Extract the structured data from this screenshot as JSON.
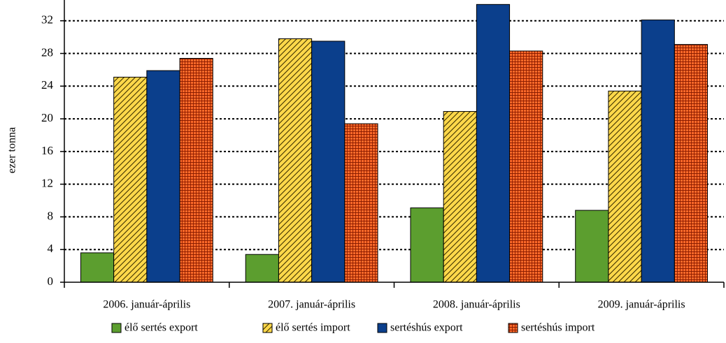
{
  "chart_data": {
    "type": "bar",
    "y_label": "ezer tonna",
    "categories": [
      "2006. január-április",
      "2007. január-április",
      "2008. január-április",
      "2009. január-április"
    ],
    "series": [
      {
        "name": "élő sertés export",
        "color": "#5c9e2f",
        "pattern": "solid",
        "values": [
          3.6,
          3.4,
          9.1,
          8.8
        ]
      },
      {
        "name": "élő sertés import",
        "color": "#ffd84a",
        "pattern": "hatch",
        "values": [
          25.1,
          29.8,
          20.9,
          23.4
        ]
      },
      {
        "name": "sertéshús export",
        "color": "#0b3f8c",
        "pattern": "solid",
        "values": [
          25.9,
          29.5,
          34.0,
          32.1
        ]
      },
      {
        "name": "sertéshús import",
        "color": "#ff6a2a",
        "pattern": "grid",
        "values": [
          27.4,
          19.4,
          28.3,
          29.1
        ]
      }
    ],
    "ylim": [
      0,
      34.2
    ],
    "yticks": [
      0,
      4,
      8,
      12,
      16,
      20,
      24,
      28,
      32
    ],
    "grid": true,
    "legend": "bottom"
  }
}
